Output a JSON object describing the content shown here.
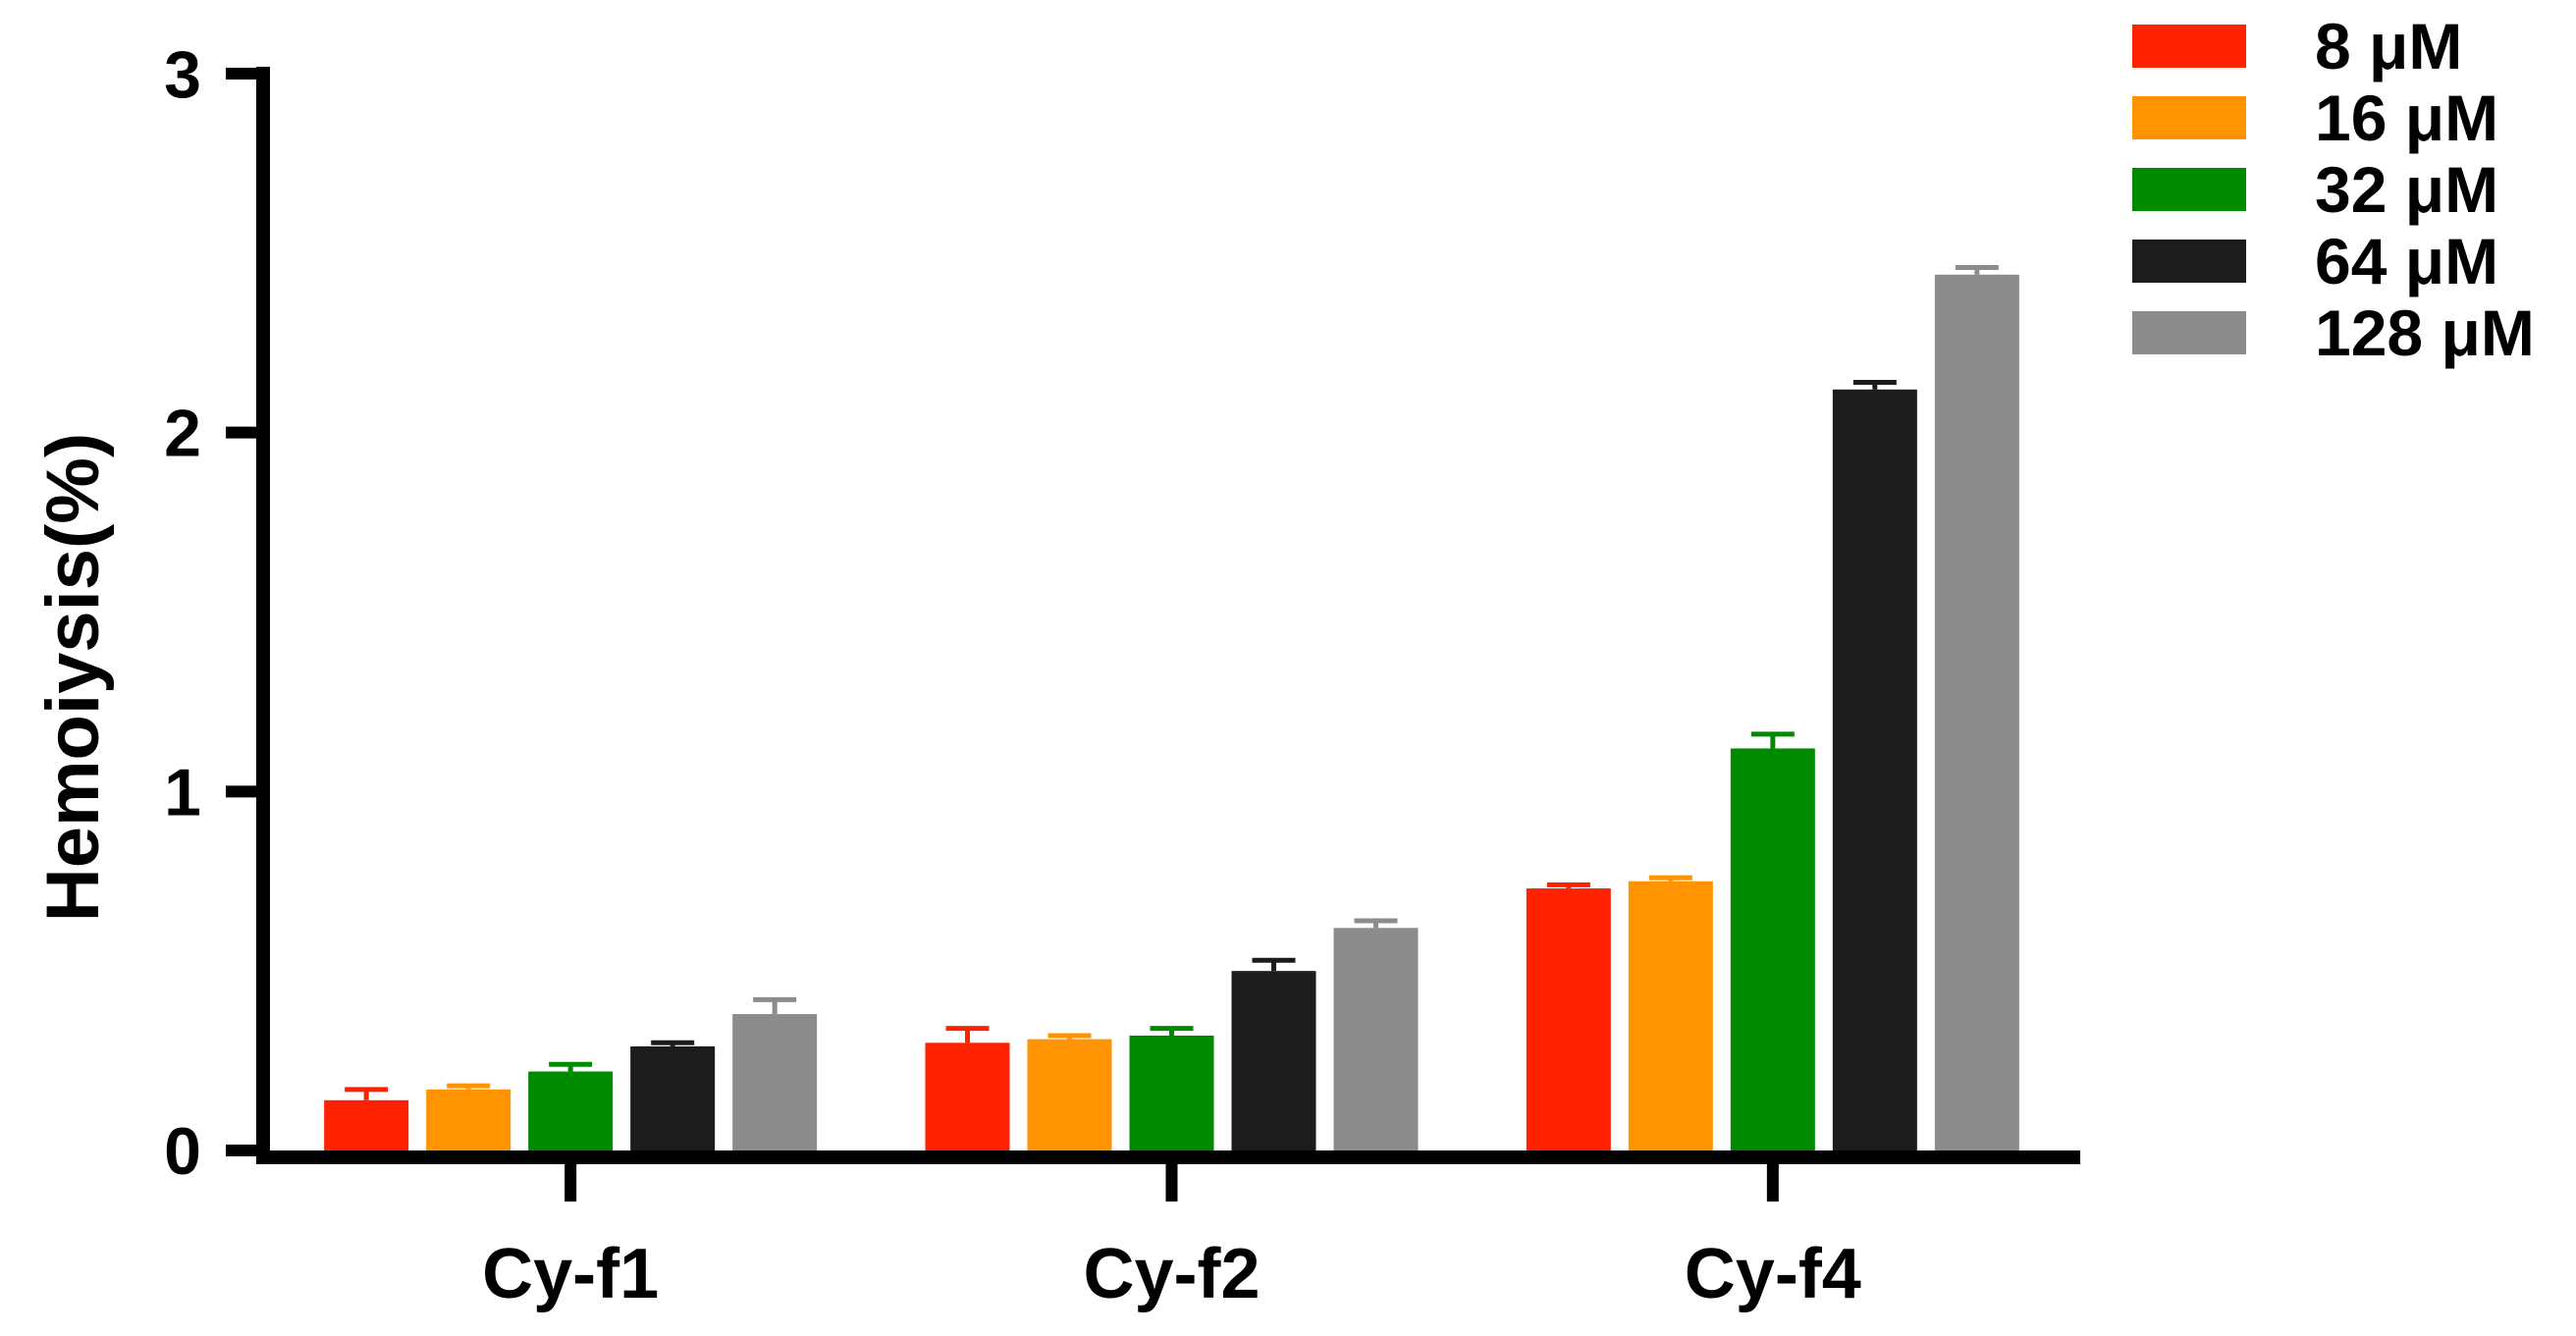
{
  "chart_data": {
    "type": "bar",
    "title": "",
    "xlabel": "",
    "ylabel": "Hemoiysis(%)",
    "ylim": [
      0,
      3
    ],
    "yticks": [
      0,
      1,
      2,
      3
    ],
    "categories": [
      "Cy-f1",
      "Cy-f2",
      "Cy-f4"
    ],
    "legend_position": "top-right",
    "grid": false,
    "series": [
      {
        "name": "8 μM",
        "color": "#ff2200",
        "values": [
          0.14,
          0.3,
          0.73
        ],
        "errors": [
          0.03,
          0.04,
          0.01
        ]
      },
      {
        "name": "16 μM",
        "color": "#ff9400",
        "values": [
          0.17,
          0.31,
          0.75
        ],
        "errors": [
          0.01,
          0.01,
          0.01
        ]
      },
      {
        "name": "32 μM",
        "color": "#008a00",
        "values": [
          0.22,
          0.32,
          1.12
        ],
        "errors": [
          0.02,
          0.02,
          0.04
        ]
      },
      {
        "name": "64 μM",
        "color": "#1c1c1c",
        "values": [
          0.29,
          0.5,
          2.12
        ],
        "errors": [
          0.01,
          0.03,
          0.02
        ]
      },
      {
        "name": "128 μM",
        "color": "#8c8c8c",
        "values": [
          0.38,
          0.62,
          2.44
        ],
        "errors": [
          0.04,
          0.02,
          0.02
        ]
      }
    ]
  }
}
